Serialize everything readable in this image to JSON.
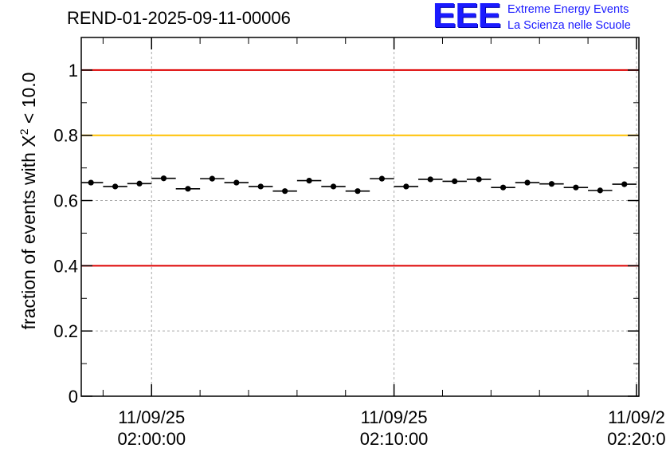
{
  "header": {
    "title": "REND-01-2025-09-11-00006",
    "logo_text": "EEE",
    "logo_line1": "Extreme Energy Events",
    "logo_line2": "La Scienza nelle Scuole"
  },
  "colors": {
    "threshold_red": "#dd0000",
    "threshold_orange": "#ffc000",
    "logo_blue": "#1a1aff",
    "marker": "#000000",
    "grid": "#aaaaaa"
  },
  "chart_data": {
    "type": "scatter",
    "ylabel_prefix": "fraction of events with X",
    "ylabel_sup": "2",
    "ylabel_suffix": " < 10.0",
    "ylim": [
      0,
      1.1
    ],
    "yticks": [
      0,
      0.2,
      0.4,
      0.6,
      0.8,
      1
    ],
    "ytick_labels": [
      "0",
      "0.2",
      "0.4",
      "0.6",
      "0.8",
      "1"
    ],
    "xlim_minutes": [
      -2.9,
      20.1
    ],
    "x_unit": "minutes after 11/09/25 02:00:00",
    "xticks": [
      {
        "minute": 0,
        "date": "11/09/25",
        "time": "02:00:00"
      },
      {
        "minute": 10,
        "date": "11/09/25",
        "time": "02:10:00"
      },
      {
        "minute": 20,
        "date": "11/09/2",
        "time": "02:20:0"
      }
    ],
    "minor_xtick_step_minutes": 2,
    "grid": true,
    "reference_lines": [
      {
        "y": 1.0,
        "color": "#dd0000"
      },
      {
        "y": 0.8,
        "color": "#ffc000"
      },
      {
        "y": 0.4,
        "color": "#dd0000"
      }
    ],
    "bin_width_minutes": 1,
    "series": [
      {
        "x": [
          -2.5,
          -1.5,
          -0.5,
          0.5,
          1.5,
          2.5,
          3.5,
          4.5,
          5.5,
          6.5,
          7.5,
          8.5,
          9.5,
          10.5,
          11.5,
          12.5,
          13.5,
          14.5,
          15.5,
          16.5,
          17.5,
          18.5,
          19.5
        ],
        "y": [
          0.655,
          0.643,
          0.652,
          0.668,
          0.636,
          0.667,
          0.655,
          0.643,
          0.629,
          0.661,
          0.643,
          0.629,
          0.667,
          0.643,
          0.665,
          0.659,
          0.665,
          0.64,
          0.655,
          0.651,
          0.64,
          0.631,
          0.65
        ]
      }
    ]
  }
}
